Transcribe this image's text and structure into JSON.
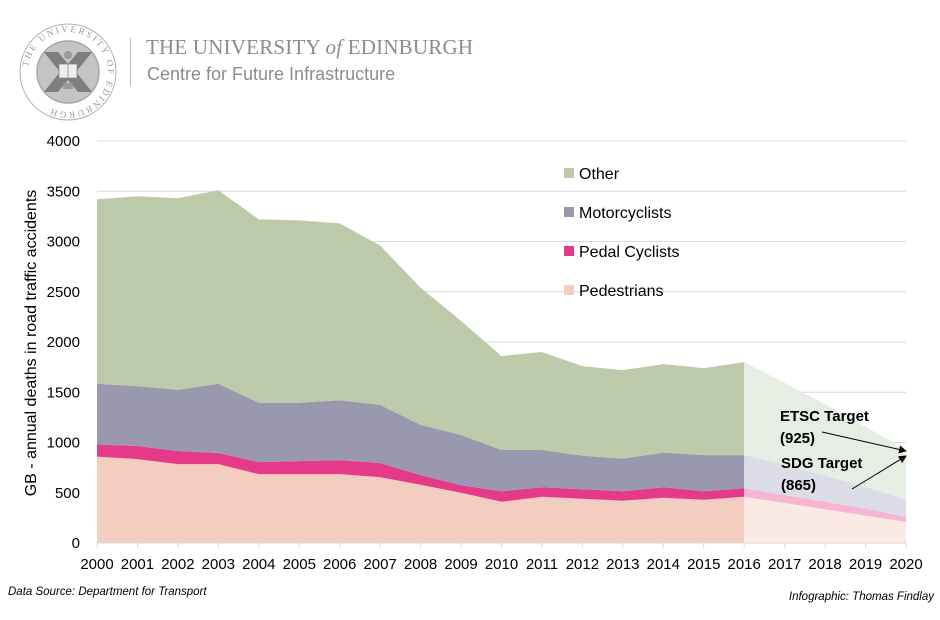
{
  "header": {
    "university_prefix": "THE UNIVERSITY ",
    "university_of": "of",
    "university_suffix": " EDINBURGH",
    "centre": "Centre for Future Infrastructure",
    "logo_ring_text": "THE UNIVERSITY OF EDINBURGH"
  },
  "footer": {
    "source": "Data Source: Department for Transport",
    "credit": "Infographic: Thomas Findlay"
  },
  "chart_data": {
    "type": "area",
    "stacked": true,
    "title": "",
    "xlabel": "",
    "ylabel": "GB - annual deaths in road traffic accidents",
    "ylim": [
      0,
      4000
    ],
    "yticks": [
      0,
      500,
      1000,
      1500,
      2000,
      2500,
      3000,
      3500,
      4000
    ],
    "grid": true,
    "legend_position": "top-right",
    "categories": [
      "2000",
      "2001",
      "2002",
      "2003",
      "2004",
      "2005",
      "2006",
      "2007",
      "2008",
      "2009",
      "2010",
      "2011",
      "2012",
      "2013",
      "2014",
      "2015",
      "2016",
      "2017",
      "2018",
      "2019",
      "2020"
    ],
    "actual_last_index": 16,
    "series": [
      {
        "name": "Pedestrians",
        "color": "#f3cdbf",
        "projected_color": "#fbe9e4",
        "values": [
          860,
          835,
          785,
          785,
          685,
          685,
          685,
          655,
          580,
          500,
          410,
          460,
          440,
          420,
          450,
          430,
          460,
          398,
          335,
          272,
          210
        ]
      },
      {
        "name": "Pedal Cyclists",
        "color": "#e5398a",
        "projected_color": "#f6b6d2",
        "values": [
          120,
          130,
          130,
          110,
          120,
          130,
          140,
          140,
          95,
          75,
          105,
          95,
          95,
          95,
          105,
          85,
          85,
          80,
          75,
          70,
          50
        ]
      },
      {
        "name": "Motorcyclists",
        "color": "#9a98ae",
        "projected_color": "#dcdce6",
        "values": [
          605,
          595,
          610,
          690,
          590,
          580,
          595,
          580,
          500,
          500,
          410,
          370,
          335,
          325,
          345,
          360,
          330,
          300,
          260,
          215,
          170
        ]
      },
      {
        "name": "Other",
        "color": "#bccaa9",
        "projected_color": "#e6ede2",
        "values": [
          1835,
          1890,
          1905,
          1925,
          1825,
          1815,
          1760,
          1585,
          1365,
          1135,
          935,
          975,
          890,
          880,
          880,
          865,
          925,
          815,
          710,
          600,
          495
        ]
      }
    ],
    "legend_order": [
      "Other",
      "Motorcyclists",
      "Pedal Cyclists",
      "Pedestrians"
    ],
    "annotations": [
      {
        "label_line1": "ETSC Target",
        "label_line2": "(925)",
        "value": 925,
        "x": "2020"
      },
      {
        "label_line1": "SDG Target",
        "label_line2": "(865)",
        "value": 865,
        "x": "2020"
      }
    ]
  }
}
